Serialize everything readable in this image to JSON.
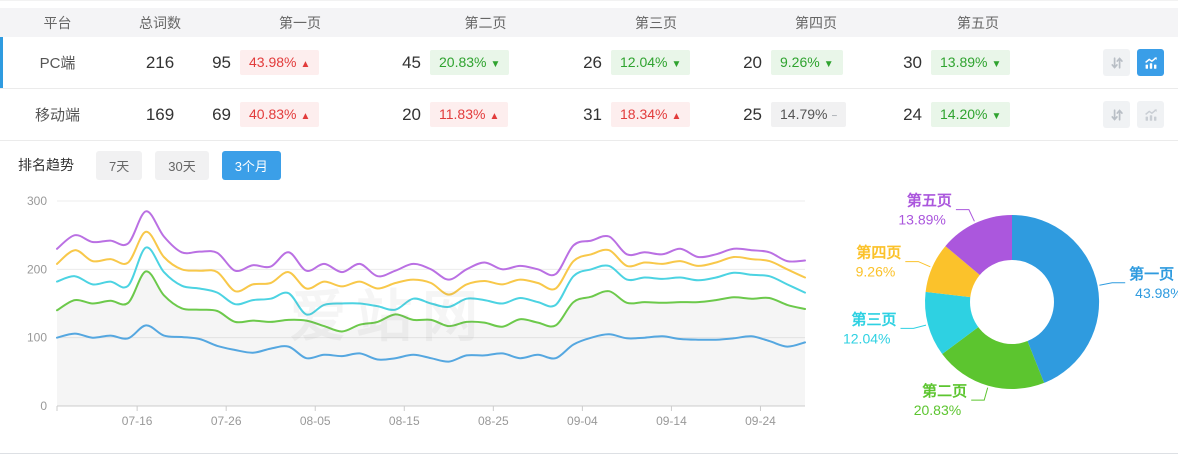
{
  "table": {
    "headers": [
      "平台",
      "总词数",
      "第一页",
      "第二页",
      "第三页",
      "第四页",
      "第五页"
    ],
    "rows": [
      {
        "platform": "PC端",
        "total": "216",
        "selected": true,
        "chart_active": true,
        "pages": [
          {
            "count": "95",
            "pct": "43.98%",
            "dir": "up",
            "tone": "red"
          },
          {
            "count": "45",
            "pct": "20.83%",
            "dir": "down",
            "tone": "green"
          },
          {
            "count": "26",
            "pct": "12.04%",
            "dir": "down",
            "tone": "green"
          },
          {
            "count": "20",
            "pct": "9.26%",
            "dir": "down",
            "tone": "green"
          },
          {
            "count": "30",
            "pct": "13.89%",
            "dir": "down",
            "tone": "green"
          }
        ]
      },
      {
        "platform": "移动端",
        "total": "169",
        "selected": false,
        "chart_active": false,
        "pages": [
          {
            "count": "69",
            "pct": "40.83%",
            "dir": "up",
            "tone": "red"
          },
          {
            "count": "20",
            "pct": "11.83%",
            "dir": "up",
            "tone": "red"
          },
          {
            "count": "31",
            "pct": "18.34%",
            "dir": "up",
            "tone": "red"
          },
          {
            "count": "25",
            "pct": "14.79%",
            "dir": "flat",
            "tone": "gray"
          },
          {
            "count": "24",
            "pct": "14.20%",
            "dir": "down",
            "tone": "green"
          }
        ]
      }
    ],
    "row_icons": [
      "sort-icon",
      "chart-icon"
    ]
  },
  "trend": {
    "label": "排名趋势",
    "tabs": [
      {
        "label": "7天",
        "active": false
      },
      {
        "label": "30天",
        "active": false
      },
      {
        "label": "3个月",
        "active": true
      }
    ]
  },
  "watermark": "爱站网",
  "colors": {
    "accent_blue": "#2f9be0",
    "tab_active_blue": "#3b9fe8",
    "badge_red_text": "#e23b3b",
    "badge_red_bg": "#fdeeee",
    "badge_green_text": "#2fa32f",
    "badge_green_bg": "#e9f6e9",
    "badge_gray_text": "#555555",
    "badge_gray_bg": "#f1f1f2",
    "line_series": [
      "#55a7e0",
      "#6cc94b",
      "#4cd3e2",
      "#f8c84a",
      "#ba70e3"
    ],
    "pie_series": [
      "#2f9bdf",
      "#5cc52f",
      "#2ed1e2",
      "#fbc22b",
      "#ab57dd"
    ],
    "axis_label": "#999999",
    "grid_line": "#ececec",
    "axis_line": "#cccccc"
  },
  "chart_data": [
    {
      "type": "line",
      "title": "排名趋势（3个月）",
      "note": "stacked cumulative keyword counts per page depth, values read from plot",
      "x": [
        "07-07",
        "07-09",
        "07-11",
        "07-13",
        "07-15",
        "07-17",
        "07-19",
        "07-21",
        "07-23",
        "07-25",
        "07-27",
        "07-29",
        "07-31",
        "08-02",
        "08-04",
        "08-06",
        "08-08",
        "08-10",
        "08-12",
        "08-14",
        "08-16",
        "08-18",
        "08-20",
        "08-22",
        "08-24",
        "08-26",
        "08-28",
        "08-30",
        "09-01",
        "09-03",
        "09-05",
        "09-07",
        "09-09",
        "09-11",
        "09-13",
        "09-15",
        "09-17",
        "09-19",
        "09-21",
        "09-23",
        "09-25",
        "09-27",
        "09-29"
      ],
      "x_ticks": [
        {
          "label": "07-16",
          "index": 4.5
        },
        {
          "label": "07-26",
          "index": 9.5
        },
        {
          "label": "08-05",
          "index": 14.5
        },
        {
          "label": "08-15",
          "index": 19.5
        },
        {
          "label": "08-25",
          "index": 24.5
        },
        {
          "label": "09-04",
          "index": 29.5
        },
        {
          "label": "09-14",
          "index": 34.5
        },
        {
          "label": "09-24",
          "index": 39.5
        }
      ],
      "ylim": [
        0,
        300
      ],
      "y_ticks": [
        0,
        100,
        200,
        300
      ],
      "grid": true,
      "series": [
        {
          "name": "第一页",
          "area": false,
          "values": [
            100,
            106,
            100,
            103,
            99,
            118,
            103,
            101,
            98,
            88,
            82,
            78,
            84,
            87,
            70,
            75,
            73,
            77,
            68,
            70,
            75,
            70,
            65,
            74,
            74,
            77,
            70,
            75,
            70,
            90,
            100,
            105,
            99,
            100,
            102,
            98,
            97,
            97,
            99,
            102,
            95,
            87,
            93
          ]
        },
        {
          "name": "第二页",
          "area": true,
          "values": [
            140,
            155,
            150,
            154,
            151,
            197,
            162,
            143,
            141,
            139,
            123,
            125,
            123,
            126,
            125,
            117,
            109,
            119,
            123,
            134,
            126,
            126,
            117,
            123,
            122,
            116,
            127,
            122,
            118,
            152,
            160,
            168,
            151,
            152,
            151,
            152,
            152,
            155,
            159,
            157,
            158,
            148,
            142
          ]
        },
        {
          "name": "第三页",
          "area": false,
          "values": [
            182,
            190,
            178,
            182,
            176,
            232,
            196,
            176,
            172,
            166,
            149,
            155,
            157,
            165,
            134,
            148,
            150,
            150,
            146,
            141,
            157,
            150,
            145,
            157,
            155,
            150,
            158,
            152,
            148,
            190,
            200,
            205,
            185,
            188,
            186,
            188,
            184,
            188,
            195,
            192,
            190,
            178,
            166
          ]
        },
        {
          "name": "第四页",
          "area": false,
          "values": [
            208,
            228,
            212,
            215,
            210,
            255,
            218,
            200,
            198,
            196,
            168,
            178,
            180,
            196,
            172,
            182,
            175,
            182,
            172,
            180,
            185,
            180,
            163,
            178,
            183,
            178,
            185,
            180,
            172,
            212,
            222,
            228,
            205,
            210,
            208,
            212,
            205,
            210,
            218,
            215,
            212,
            200,
            188
          ]
        },
        {
          "name": "第五页",
          "area": false,
          "values": [
            230,
            250,
            240,
            242,
            238,
            285,
            248,
            225,
            226,
            224,
            198,
            206,
            204,
            225,
            198,
            208,
            196,
            208,
            190,
            198,
            208,
            200,
            185,
            200,
            210,
            200,
            205,
            200,
            193,
            235,
            242,
            248,
            222,
            225,
            222,
            230,
            218,
            222,
            230,
            228,
            225,
            212,
            213
          ]
        }
      ]
    },
    {
      "type": "pie",
      "donut": true,
      "start_angle_deg": 0,
      "slices": [
        {
          "label": "第一页",
          "value": 43.98,
          "display": "43.98%"
        },
        {
          "label": "第二页",
          "value": 20.83,
          "display": "20.83%"
        },
        {
          "label": "第三页",
          "value": 12.04,
          "display": "12.04%"
        },
        {
          "label": "第四页",
          "value": 9.26,
          "display": "9.26%"
        },
        {
          "label": "第五页",
          "value": 13.89,
          "display": "13.89%"
        }
      ]
    }
  ]
}
